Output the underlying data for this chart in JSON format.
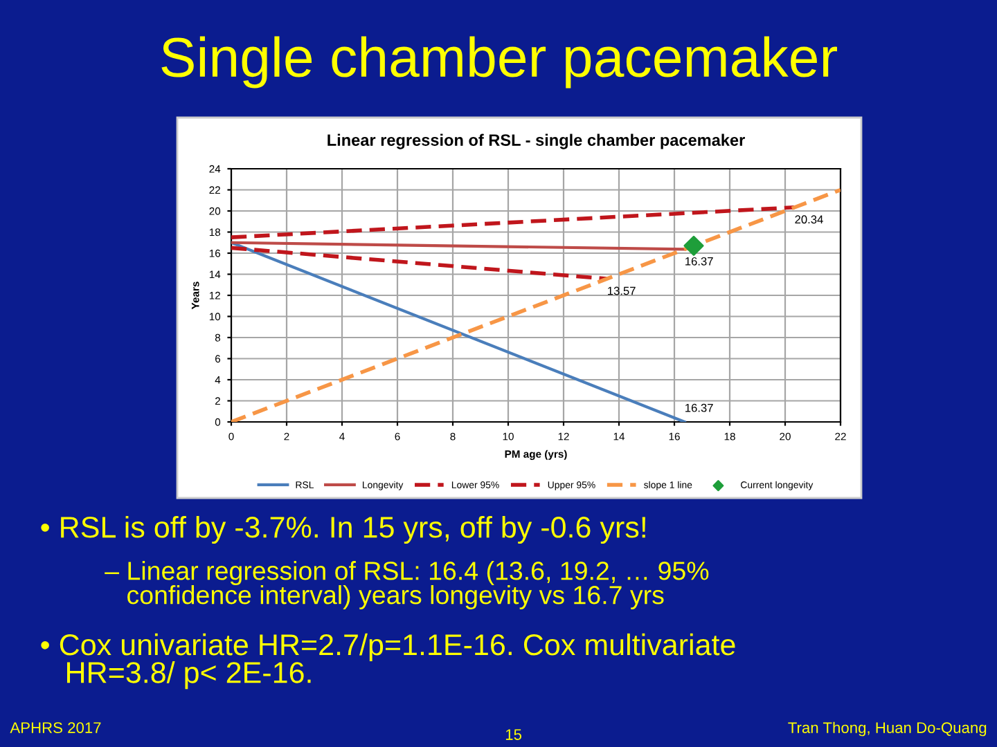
{
  "chart_data": {
    "type": "line",
    "title": "Single chamber pacemaker",
    "subtitle": "Linear regression of RSL - single chamber pacemaker",
    "xlabel": "PM age (yrs)",
    "ylabel": "Years",
    "series": [
      {
        "name": "RSL",
        "color": "#4a7ebb",
        "x": [
          0,
          16.37
        ],
        "values": [
          17,
          0
        ],
        "line_style": "solid",
        "marker": "none"
      },
      {
        "name": "Longevity",
        "color": "#be4b48",
        "x": [
          0,
          16.37
        ],
        "values": [
          17,
          16.37
        ],
        "line_style": "solid",
        "marker": "none"
      },
      {
        "name": "Lower 95%",
        "color": "#c0161c",
        "x": [
          0,
          13.57
        ],
        "values": [
          16.5,
          13.57
        ],
        "line_style": "dashed",
        "marker": "none"
      },
      {
        "name": "Upper 95%",
        "color": "#c0161c",
        "x": [
          0,
          20.34
        ],
        "values": [
          17.5,
          20.34
        ],
        "line_style": "dashed",
        "marker": "none"
      },
      {
        "name": "slope 1 line",
        "color": "#f79646",
        "x": [
          0,
          22
        ],
        "values": [
          0,
          22
        ],
        "line_style": "dashed",
        "marker": "none"
      },
      {
        "name": "Current longevity",
        "type": "scatter",
        "color": "#1e9e3a",
        "x": [
          16.7
        ],
        "values": [
          16.7
        ],
        "marker": "diamond"
      }
    ],
    "xlim": [
      0,
      22
    ],
    "xticks": [
      0,
      2,
      4,
      6,
      8,
      10,
      12,
      14,
      16,
      18,
      20,
      22
    ],
    "ylim": [
      0,
      24
    ],
    "yticks": [
      0,
      2,
      4,
      6,
      8,
      10,
      12,
      14,
      16,
      18,
      20,
      22,
      24
    ],
    "grid": true,
    "legend": "bottom",
    "annotations": [
      {
        "text": "20.34",
        "x": 20.34,
        "y": 20.34
      },
      {
        "text": "16.37",
        "x": 16.37,
        "y": 16.37
      },
      {
        "text": "13.57",
        "x": 13.57,
        "y": 13.57
      },
      {
        "text": "16.37",
        "x": 16.37,
        "y": 0
      },
      "• RSL is off by -3.7%. In 15 yrs, off by -0.6 yrs!",
      "– Linear regression of RSL: 16.4 (13.6, 19.2, … 95%\n   confidence interval) years longevity vs 16.7 yrs",
      "• Cox univariate HR=2.7/p=1.1E-16. Cox multivariate\n   HR=3.8/ p< 2E-16.",
      "APHRS 2017",
      "15",
      "Tran Thong, Huan Do-Quang"
    ]
  }
}
